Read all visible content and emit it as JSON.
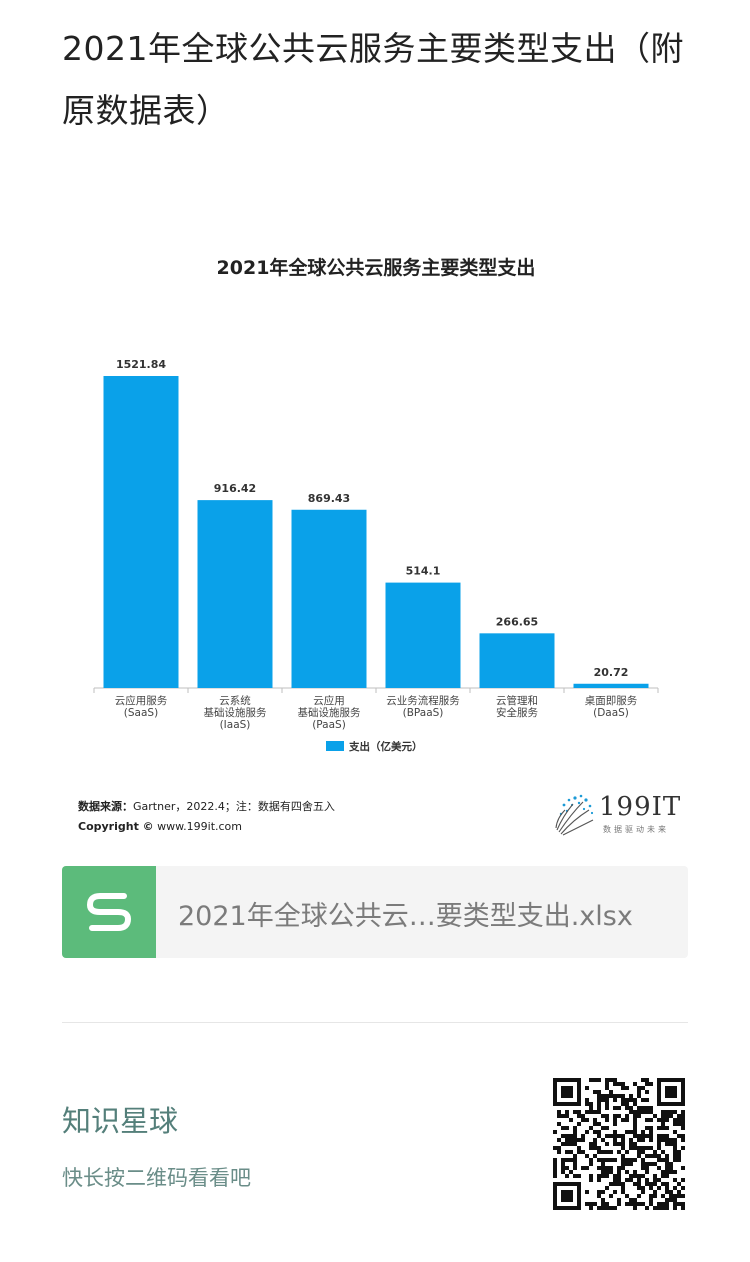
{
  "post": {
    "title": "2021年全球公共云服务主要类型支出（附原数据表）"
  },
  "chart_data": {
    "type": "bar",
    "title": "2021年全球公共云服务主要类型支出",
    "categories": [
      [
        "云应用服务",
        "(SaaS)"
      ],
      [
        "云系统",
        "基础设施服务",
        "(IaaS)"
      ],
      [
        "云应用",
        "基础设施服务",
        "(PaaS)"
      ],
      [
        "云业务流程服务",
        "(BPaaS)"
      ],
      [
        "云管理和",
        "安全服务"
      ],
      [
        "桌面即服务",
        "(DaaS)"
      ]
    ],
    "series": [
      {
        "name": "支出（亿美元）",
        "values": [
          1521.84,
          916.42,
          869.43,
          514.1,
          266.65,
          20.72
        ]
      }
    ],
    "value_labels": [
      "1521.84",
      "916.42",
      "869.43",
      "514.1",
      "266.65",
      "20.72"
    ],
    "ylim": [
      0,
      1521.84
    ],
    "grid": false,
    "legend": "bottom-center",
    "colors": {
      "bar": "#0aa1e9",
      "axis": "#bfbfbf",
      "text": "#333333"
    }
  },
  "footer": {
    "source_label": "数据来源：",
    "source_text": "Gartner，2022.4；注：数据有四舍五入",
    "copyright_label": "Copyright ©",
    "copyright_url": "www.199it.com"
  },
  "brand": {
    "name": "199IT",
    "slogan": "数据驱动未来"
  },
  "attachment": {
    "file_name": "2021年全球公共云…要类型支出.xlsx",
    "icon": "spreadsheet-s-icon",
    "icon_color": "#5cbb7b"
  },
  "planet": {
    "title": "知识星球",
    "subtitle": "快长按二维码看看吧",
    "qr_icon": "qr-code-icon"
  }
}
